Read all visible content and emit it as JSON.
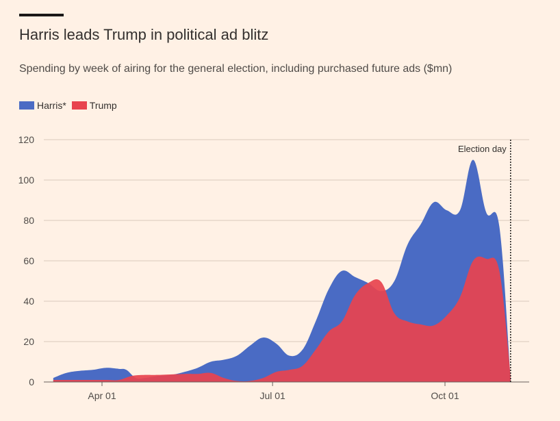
{
  "chart_data": {
    "type": "area",
    "title": "Harris leads Trump in political ad blitz",
    "subtitle": "Spending by week of airing for the general election, including purchased future ads ($mn)",
    "x_ticks": [
      "2024-04-01",
      "2024-07-01",
      "2024-10-01"
    ],
    "x_tick_labels": [
      "Apr 01",
      "Jul 01",
      "Oct 01"
    ],
    "ylim": [
      0,
      120
    ],
    "y_ticks": [
      0,
      20,
      40,
      60,
      80,
      100,
      120
    ],
    "grid": true,
    "legend_position": "top-left",
    "annotation": {
      "label": "Election day",
      "date": "2024-11-05"
    },
    "series": [
      {
        "name": "Harris*",
        "color": "#4a6bc4",
        "points": [
          [
            "2024-03-06",
            2
          ],
          [
            "2024-03-13",
            4.5
          ],
          [
            "2024-03-20",
            5.5
          ],
          [
            "2024-03-27",
            6
          ],
          [
            "2024-04-03",
            7
          ],
          [
            "2024-04-10",
            6.5
          ],
          [
            "2024-04-14",
            6
          ],
          [
            "2024-04-19",
            2
          ],
          [
            "2024-04-24",
            2
          ],
          [
            "2024-05-01",
            3
          ],
          [
            "2024-05-08",
            3.5
          ],
          [
            "2024-05-15",
            5
          ],
          [
            "2024-05-22",
            7
          ],
          [
            "2024-05-29",
            10
          ],
          [
            "2024-06-05",
            11
          ],
          [
            "2024-06-12",
            13
          ],
          [
            "2024-06-19",
            18
          ],
          [
            "2024-06-26",
            22
          ],
          [
            "2024-07-03",
            19
          ],
          [
            "2024-07-10",
            13
          ],
          [
            "2024-07-17",
            16
          ],
          [
            "2024-07-24",
            30
          ],
          [
            "2024-07-31",
            46
          ],
          [
            "2024-08-07",
            55
          ],
          [
            "2024-08-14",
            52
          ],
          [
            "2024-08-21",
            49
          ],
          [
            "2024-08-28",
            45
          ],
          [
            "2024-09-04",
            50
          ],
          [
            "2024-09-11",
            68
          ],
          [
            "2024-09-18",
            78
          ],
          [
            "2024-09-25",
            89
          ],
          [
            "2024-10-02",
            85
          ],
          [
            "2024-10-09",
            85
          ],
          [
            "2024-10-16",
            110
          ],
          [
            "2024-10-23",
            84
          ],
          [
            "2024-10-30",
            77
          ],
          [
            "2024-11-05",
            1
          ]
        ]
      },
      {
        "name": "Trump",
        "color": "#e8434e",
        "points": [
          [
            "2024-03-06",
            1
          ],
          [
            "2024-03-20",
            1
          ],
          [
            "2024-04-03",
            1
          ],
          [
            "2024-04-10",
            1
          ],
          [
            "2024-04-17",
            3
          ],
          [
            "2024-04-24",
            3.5
          ],
          [
            "2024-05-01",
            3.5
          ],
          [
            "2024-05-15",
            4
          ],
          [
            "2024-05-22",
            4
          ],
          [
            "2024-05-29",
            4.5
          ],
          [
            "2024-06-05",
            2
          ],
          [
            "2024-06-12",
            0.5
          ],
          [
            "2024-06-19",
            0.5
          ],
          [
            "2024-06-26",
            2
          ],
          [
            "2024-07-03",
            5
          ],
          [
            "2024-07-10",
            6
          ],
          [
            "2024-07-17",
            8
          ],
          [
            "2024-07-24",
            16
          ],
          [
            "2024-07-31",
            25
          ],
          [
            "2024-08-07",
            30
          ],
          [
            "2024-08-14",
            43
          ],
          [
            "2024-08-21",
            49
          ],
          [
            "2024-08-28",
            49.5
          ],
          [
            "2024-09-04",
            34
          ],
          [
            "2024-09-11",
            30
          ],
          [
            "2024-09-18",
            28.5
          ],
          [
            "2024-09-25",
            28
          ],
          [
            "2024-10-02",
            33
          ],
          [
            "2024-10-09",
            42
          ],
          [
            "2024-10-16",
            60
          ],
          [
            "2024-10-23",
            61
          ],
          [
            "2024-10-30",
            55
          ],
          [
            "2024-11-05",
            3
          ]
        ]
      }
    ]
  }
}
